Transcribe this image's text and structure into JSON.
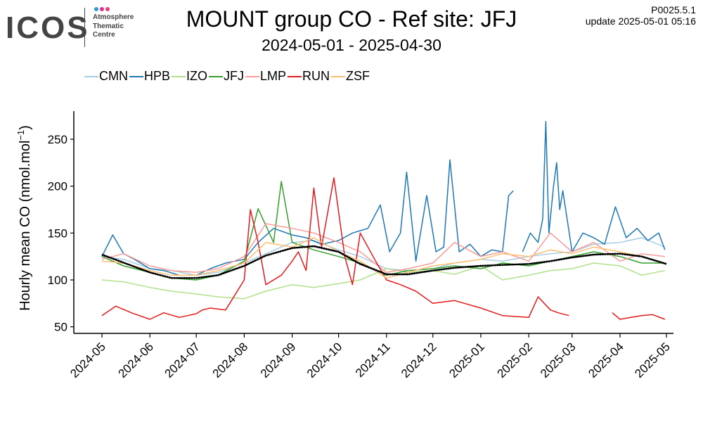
{
  "logo": {
    "name": "ICOS",
    "line1": "Atmosphere",
    "line2": "Thematic",
    "line3": "Centre",
    "dot_colors": [
      "#2b9bd7",
      "#d93287",
      "#e8417b"
    ]
  },
  "header": {
    "version": "P0025.5.1",
    "update": "update  2025-05-01 05:16"
  },
  "chart_data": {
    "type": "line",
    "title": "MOUNT group CO - Ref site: JFJ",
    "subtitle": "2024-05-01 - 2025-04-30",
    "xlabel": "",
    "ylabel": "Hourly mean  CO (nmol.mol",
    "ylabel_sup": "−1",
    "ylabel_close": ")",
    "xlim": [
      "2024-05-01",
      "2025-05-01"
    ],
    "ylim": [
      43,
      280
    ],
    "yticks": [
      50,
      100,
      150,
      200,
      250
    ],
    "xtick_labels": [
      "2024-05",
      "2024-06",
      "2024-07",
      "2024-08",
      "2024-09",
      "2024-10",
      "2024-11",
      "2024-12",
      "2025-01",
      "2025-02",
      "2025-03",
      "2025-04",
      "2025-05"
    ],
    "xtick_dates": [
      "2024-05-01",
      "2024-06-01",
      "2024-07-01",
      "2024-08-01",
      "2024-09-01",
      "2024-10-01",
      "2024-11-01",
      "2024-12-01",
      "2025-01-01",
      "2025-02-01",
      "2025-03-01",
      "2025-04-01",
      "2025-05-01"
    ],
    "legend_position": "top-left",
    "grid": false,
    "series": [
      {
        "name": "CMN",
        "color": "#a6cee3",
        "width": 1.5,
        "x": [
          "2024-05-01",
          "2024-05-15",
          "2024-06-01",
          "2024-06-15",
          "2024-07-01",
          "2024-07-15",
          "2024-08-01",
          "2024-08-15",
          "2024-09-01",
          "2024-09-15",
          "2024-10-01",
          "2024-10-15",
          "2024-11-01",
          "2024-11-15",
          "2024-12-01",
          "2024-12-15",
          "2025-01-01",
          "2025-01-15",
          "2025-02-01",
          "2025-02-15",
          "2025-03-01",
          "2025-03-15",
          "2025-04-01",
          "2025-04-15",
          "2025-04-30"
        ],
        "y": [
          125,
          122,
          112,
          110,
          105,
          108,
          118,
          128,
          140,
          142,
          132,
          125,
          112,
          110,
          112,
          118,
          122,
          120,
          125,
          128,
          130,
          138,
          140,
          145,
          135
        ]
      },
      {
        "name": "HPB",
        "color": "#1f78b4",
        "width": 1.5,
        "x": [
          "2024-05-01",
          "2024-05-08",
          "2024-05-15",
          "2024-05-22",
          "2024-06-01",
          "2024-06-10",
          "2024-06-20",
          "2024-07-01",
          "2024-07-10",
          "2024-07-20",
          "2024-08-01",
          "2024-08-10",
          "2024-08-20",
          "2024-09-01",
          "2024-09-10",
          "2024-09-20",
          "2024-10-01",
          "2024-10-10",
          "2024-10-20",
          "2024-10-28",
          "2024-11-03",
          "2024-11-10",
          "2024-11-14",
          "2024-11-20",
          "2024-11-27",
          "2024-12-03",
          "2024-12-08",
          "2024-12-12",
          "2024-12-18",
          "2024-12-25",
          "2025-01-01",
          "2025-01-08",
          "2025-01-15",
          "2025-01-19",
          "2025-01-22"
        ],
        "y": [
          125,
          148,
          128,
          122,
          112,
          110,
          105,
          105,
          112,
          118,
          122,
          140,
          155,
          148,
          145,
          138,
          142,
          150,
          155,
          180,
          130,
          150,
          215,
          120,
          190,
          130,
          135,
          228,
          130,
          138,
          125,
          132,
          130,
          190,
          195
        ]
      },
      {
        "name": "HPB",
        "color": "#1f78b4",
        "width": 1.5,
        "x": [
          "2025-01-28",
          "2025-02-02",
          "2025-02-07",
          "2025-02-10",
          "2025-02-12",
          "2025-02-14",
          "2025-02-17",
          "2025-02-19",
          "2025-02-21",
          "2025-02-23",
          "2025-03-01",
          "2025-03-08",
          "2025-03-15",
          "2025-03-22",
          "2025-03-29",
          "2025-04-05",
          "2025-04-12",
          "2025-04-19",
          "2025-04-26",
          "2025-04-30"
        ],
        "y": [
          130,
          150,
          140,
          165,
          269,
          150,
          200,
          225,
          175,
          195,
          130,
          150,
          145,
          138,
          178,
          145,
          155,
          142,
          150,
          132
        ]
      },
      {
        "name": "IZO",
        "color": "#b2df8a",
        "width": 1.5,
        "x": [
          "2024-05-01",
          "2024-05-15",
          "2024-06-01",
          "2024-06-15",
          "2024-07-01",
          "2024-07-15",
          "2024-08-01",
          "2024-08-15",
          "2024-09-01",
          "2024-09-15",
          "2024-10-01",
          "2024-10-15",
          "2024-11-01",
          "2024-11-15",
          "2024-12-01",
          "2024-12-15",
          "2025-01-01",
          "2025-01-15",
          "2025-02-01",
          "2025-02-15",
          "2025-03-01",
          "2025-03-15",
          "2025-04-01",
          "2025-04-15",
          "2025-04-30"
        ],
        "y": [
          100,
          98,
          92,
          88,
          85,
          82,
          80,
          88,
          95,
          92,
          96,
          100,
          112,
          108,
          110,
          106,
          115,
          100,
          105,
          110,
          112,
          118,
          115,
          105,
          110
        ]
      },
      {
        "name": "JFJ",
        "color": "#33a02c",
        "width": 1.5,
        "x": [
          "2024-05-01",
          "2024-05-15",
          "2024-06-01",
          "2024-06-15",
          "2024-07-01",
          "2024-07-15",
          "2024-08-01",
          "2024-08-10",
          "2024-08-20",
          "2024-08-25",
          "2024-09-01",
          "2024-09-15",
          "2024-10-01",
          "2024-10-15",
          "2024-11-01",
          "2024-11-15",
          "2024-12-01",
          "2024-12-15",
          "2025-01-01",
          "2025-01-15",
          "2025-02-01",
          "2025-02-15",
          "2025-03-01",
          "2025-03-15",
          "2025-04-01",
          "2025-04-15",
          "2025-04-30"
        ],
        "y": [
          125,
          115,
          108,
          102,
          100,
          105,
          120,
          176,
          140,
          205,
          140,
          132,
          125,
          118,
          105,
          110,
          112,
          115,
          112,
          118,
          115,
          120,
          125,
          130,
          125,
          118,
          118
        ]
      },
      {
        "name": "LMP",
        "color": "#fb9a99",
        "width": 1.5,
        "x": [
          "2024-05-01",
          "2024-05-15",
          "2024-06-01",
          "2024-06-15",
          "2024-07-01",
          "2024-07-15",
          "2024-08-01",
          "2024-08-15",
          "2024-09-01",
          "2024-09-15",
          "2024-10-01",
          "2024-10-15",
          "2024-11-01",
          "2024-11-15",
          "2024-12-01",
          "2024-12-15",
          "2025-01-01",
          "2025-01-15",
          "2025-02-01",
          "2025-02-15",
          "2025-03-01",
          "2025-03-15",
          "2025-04-01",
          "2025-04-15",
          "2025-04-30"
        ],
        "y": [
          122,
          128,
          115,
          110,
          108,
          112,
          125,
          160,
          155,
          150,
          140,
          130,
          108,
          112,
          118,
          140,
          125,
          130,
          120,
          150,
          130,
          140,
          120,
          128,
          125
        ]
      },
      {
        "name": "RUN",
        "color": "#e31a1c",
        "width": 1.5,
        "x": [
          "2024-05-01",
          "2024-05-10",
          "2024-05-20",
          "2024-06-01",
          "2024-06-10",
          "2024-06-20",
          "2024-07-01",
          "2024-07-05",
          "2024-07-10",
          "2024-07-20",
          "2024-08-01",
          "2024-08-05",
          "2024-08-10",
          "2024-08-15",
          "2024-08-25",
          "2024-09-01",
          "2024-09-05",
          "2024-09-10",
          "2024-09-15",
          "2024-09-20",
          "2024-09-28",
          "2024-10-05",
          "2024-10-10",
          "2024-10-15",
          "2024-10-25",
          "2024-11-01",
          "2024-11-10",
          "2024-11-20",
          "2024-12-01",
          "2024-12-15",
          "2025-01-01",
          "2025-01-15",
          "2025-02-01",
          "2025-02-07",
          "2025-02-15",
          "2025-02-20",
          "2025-02-27"
        ],
        "y": [
          62,
          72,
          65,
          58,
          65,
          60,
          64,
          68,
          70,
          68,
          100,
          175,
          140,
          95,
          105,
          120,
          130,
          110,
          198,
          135,
          209,
          125,
          95,
          150,
          120,
          100,
          95,
          88,
          75,
          78,
          70,
          62,
          60,
          82,
          68,
          65,
          62
        ]
      },
      {
        "name": "RUN",
        "color": "#e31a1c",
        "width": 1.5,
        "x": [
          "2025-03-27",
          "2025-04-01",
          "2025-04-08",
          "2025-04-15",
          "2025-04-22",
          "2025-04-30"
        ],
        "y": [
          65,
          58,
          60,
          62,
          63,
          58
        ]
      },
      {
        "name": "ZSF",
        "color": "#fdbf6f",
        "width": 1.5,
        "x": [
          "2024-05-01",
          "2024-05-15",
          "2024-06-01",
          "2024-06-15",
          "2024-07-01",
          "2024-07-15",
          "2024-08-01",
          "2024-08-15",
          "2024-09-01",
          "2024-09-15",
          "2024-10-01",
          "2024-10-15",
          "2024-11-01",
          "2024-11-15",
          "2024-12-01",
          "2024-12-15",
          "2025-01-01",
          "2025-01-15",
          "2025-02-01",
          "2025-02-15",
          "2025-03-01",
          "2025-03-15",
          "2025-04-01",
          "2025-04-15",
          "2025-04-30"
        ],
        "y": [
          120,
          118,
          110,
          105,
          105,
          110,
          118,
          140,
          135,
          145,
          130,
          120,
          102,
          108,
          115,
          118,
          122,
          128,
          125,
          132,
          128,
          135,
          130,
          125,
          118
        ]
      },
      {
        "name": "",
        "color": "#000000",
        "width": 2.2,
        "dotted": true,
        "x": [
          "2024-05-01",
          "2024-06-01",
          "2024-06-15",
          "2024-07-01",
          "2024-07-15",
          "2024-08-01",
          "2024-08-15",
          "2024-09-01",
          "2024-09-15",
          "2024-10-01",
          "2024-10-15",
          "2024-11-01",
          "2024-11-15",
          "2024-12-01",
          "2024-12-15",
          "2025-01-01",
          "2025-01-15",
          "2025-02-01",
          "2025-02-15",
          "2025-03-01",
          "2025-03-15",
          "2025-04-01",
          "2025-04-15",
          "2025-05-01"
        ],
        "y": [
          127,
          108,
          102,
          102,
          105,
          115,
          126,
          134,
          136,
          130,
          117,
          106,
          106,
          110,
          113,
          115,
          116,
          117,
          120,
          124,
          127,
          128,
          125,
          117
        ]
      }
    ]
  }
}
